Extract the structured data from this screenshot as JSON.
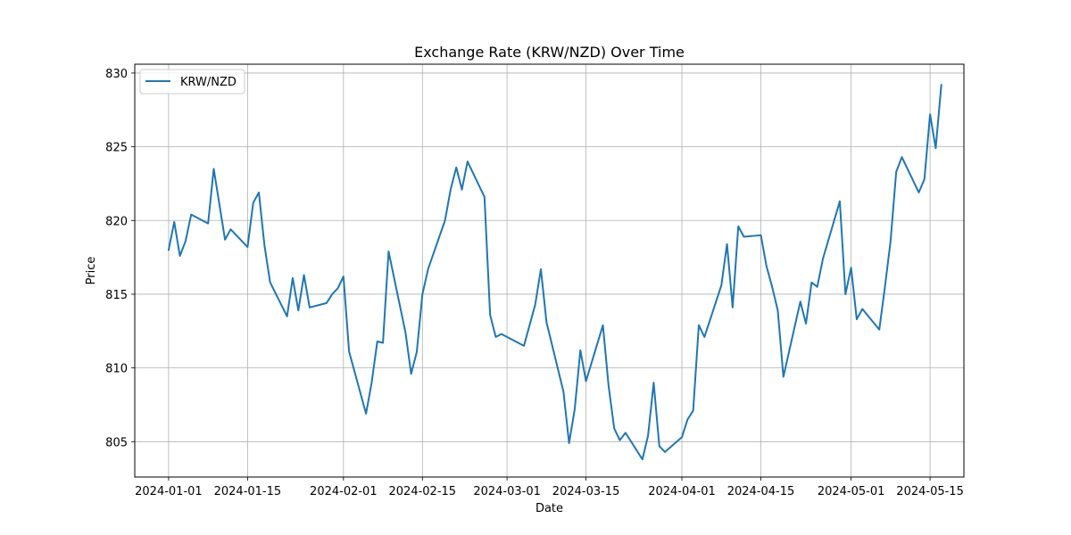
{
  "chart_data": {
    "type": "line",
    "title": "Exchange Rate (KRW/NZD) Over Time",
    "xlabel": "Date",
    "ylabel": "Price",
    "xlim": [
      "2023-12-26",
      "2024-05-21"
    ],
    "ylim": [
      802.6,
      830.6
    ],
    "grid": true,
    "legend_position": "top-left",
    "x_ticks": [
      "2024-01-01",
      "2024-01-15",
      "2024-02-01",
      "2024-02-15",
      "2024-03-01",
      "2024-03-15",
      "2024-04-01",
      "2024-04-15",
      "2024-05-01",
      "2024-05-15"
    ],
    "y_ticks": [
      805,
      810,
      815,
      820,
      825,
      830
    ],
    "series": [
      {
        "name": "KRW/NZD",
        "color": "#1f77b4",
        "x": [
          "2024-01-01",
          "2024-01-02",
          "2024-01-03",
          "2024-01-04",
          "2024-01-05",
          "2024-01-08",
          "2024-01-09",
          "2024-01-10",
          "2024-01-11",
          "2024-01-12",
          "2024-01-15",
          "2024-01-16",
          "2024-01-17",
          "2024-01-18",
          "2024-01-19",
          "2024-01-22",
          "2024-01-23",
          "2024-01-24",
          "2024-01-25",
          "2024-01-26",
          "2024-01-29",
          "2024-01-30",
          "2024-01-31",
          "2024-02-01",
          "2024-02-02",
          "2024-02-05",
          "2024-02-06",
          "2024-02-07",
          "2024-02-08",
          "2024-02-09",
          "2024-02-12",
          "2024-02-13",
          "2024-02-14",
          "2024-02-15",
          "2024-02-16",
          "2024-02-19",
          "2024-02-20",
          "2024-02-21",
          "2024-02-22",
          "2024-02-23",
          "2024-02-26",
          "2024-02-27",
          "2024-02-28",
          "2024-02-29",
          "2024-03-01",
          "2024-03-04",
          "2024-03-05",
          "2024-03-06",
          "2024-03-07",
          "2024-03-08",
          "2024-03-11",
          "2024-03-12",
          "2024-03-13",
          "2024-03-14",
          "2024-03-15",
          "2024-03-18",
          "2024-03-19",
          "2024-03-20",
          "2024-03-21",
          "2024-03-22",
          "2024-03-25",
          "2024-03-26",
          "2024-03-27",
          "2024-03-28",
          "2024-03-29",
          "2024-04-01",
          "2024-04-02",
          "2024-04-03",
          "2024-04-04",
          "2024-04-05",
          "2024-04-08",
          "2024-04-09",
          "2024-04-10",
          "2024-04-11",
          "2024-04-12",
          "2024-04-15",
          "2024-04-16",
          "2024-04-17",
          "2024-04-18",
          "2024-04-19",
          "2024-04-22",
          "2024-04-23",
          "2024-04-24",
          "2024-04-25",
          "2024-04-26",
          "2024-04-29",
          "2024-04-30",
          "2024-05-01",
          "2024-05-02",
          "2024-05-03",
          "2024-05-06",
          "2024-05-07",
          "2024-05-08",
          "2024-05-09",
          "2024-05-10",
          "2024-05-13",
          "2024-05-14",
          "2024-05-15",
          "2024-05-16",
          "2024-05-17"
        ],
        "values": [
          818.0,
          819.9,
          817.6,
          818.6,
          820.4,
          819.8,
          823.5,
          821.1,
          818.7,
          819.4,
          818.2,
          821.2,
          821.9,
          818.3,
          815.8,
          813.5,
          816.1,
          813.9,
          816.3,
          814.1,
          814.4,
          815.0,
          815.4,
          816.2,
          811.1,
          806.9,
          809.0,
          811.8,
          811.7,
          817.9,
          812.4,
          809.6,
          811.1,
          815.0,
          816.7,
          820.0,
          822.1,
          823.6,
          822.1,
          824.0,
          821.6,
          813.6,
          812.1,
          812.3,
          812.1,
          811.5,
          812.9,
          814.3,
          816.7,
          813.1,
          808.4,
          804.9,
          807.2,
          811.2,
          809.1,
          812.9,
          808.8,
          805.9,
          805.1,
          805.6,
          803.8,
          805.4,
          809.0,
          804.7,
          804.3,
          805.3,
          806.5,
          807.1,
          812.9,
          812.1,
          815.6,
          818.4,
          814.1,
          819.6,
          818.9,
          819.0,
          816.9,
          815.5,
          813.9,
          809.4,
          814.5,
          813.0,
          815.8,
          815.5,
          817.4,
          821.3,
          815.0,
          816.8,
          813.3,
          814.0,
          812.6,
          815.5,
          818.6,
          823.3,
          824.3,
          821.9,
          822.8,
          827.2,
          824.9,
          829.2
        ]
      }
    ]
  }
}
